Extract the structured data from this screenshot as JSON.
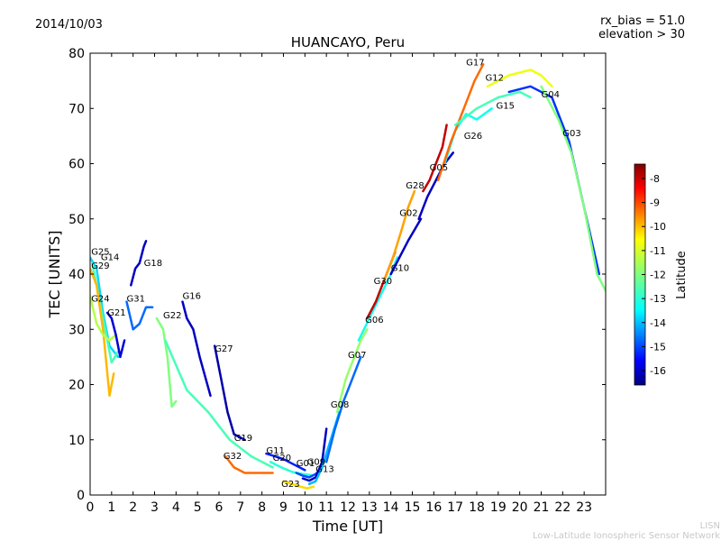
{
  "header": {
    "date": "2014/10/03",
    "rx_bias": "rx_bias = 51.0",
    "elevation": "elevation > 30"
  },
  "footer": {
    "org_short": "LISN",
    "org_long": "Low-Latitude Ionospheric Sensor Network"
  },
  "chart_data": {
    "type": "scatter",
    "title": "HUANCAYO, Peru",
    "xlabel": "Time [UT]",
    "ylabel": "TEC [UNITS]",
    "xlim": [
      0,
      24
    ],
    "ylim": [
      0,
      80
    ],
    "xticks": [
      "0",
      "1",
      "2",
      "3",
      "4",
      "5",
      "6",
      "7",
      "8",
      "9",
      "10",
      "11",
      "12",
      "13",
      "14",
      "15",
      "16",
      "17",
      "18",
      "19",
      "20",
      "21",
      "22",
      "23"
    ],
    "yticks": [
      "0",
      "10",
      "20",
      "30",
      "40",
      "50",
      "60",
      "70",
      "80"
    ],
    "colorbar": {
      "label": "Latitude",
      "range": [
        -16.6,
        -7.4
      ],
      "ticks": [
        "-8",
        "-9",
        "-10",
        "-11",
        "-12",
        "-13",
        "-14",
        "-15",
        "-16"
      ],
      "colormap": [
        "#00007f",
        "#0000ff",
        "#007fff",
        "#00ffff",
        "#7fff7f",
        "#ffff00",
        "#ff7f00",
        "#ff0000",
        "#7f0000"
      ]
    },
    "satellites": [
      {
        "label": "G25",
        "points": [
          [
            0.0,
            43
          ],
          [
            0.3,
            41
          ],
          [
            0.6,
            33
          ],
          [
            0.9,
            27
          ],
          [
            1.3,
            25
          ]
        ],
        "lat": -13.5
      },
      {
        "label": "G14",
        "points": [
          [
            0.1,
            42
          ],
          [
            0.4,
            36
          ],
          [
            0.7,
            30
          ],
          [
            1.0,
            24
          ],
          [
            1.3,
            26
          ]
        ],
        "lat": -12.5
      },
      {
        "label": "G29",
        "points": [
          [
            0.0,
            41
          ],
          [
            0.3,
            38
          ],
          [
            0.6,
            30
          ],
          [
            0.9,
            18
          ],
          [
            1.1,
            22
          ]
        ],
        "lat": -10.2
      },
      {
        "label": "G24",
        "points": [
          [
            0.0,
            36
          ],
          [
            0.3,
            31
          ],
          [
            0.6,
            29
          ],
          [
            0.9,
            28
          ],
          [
            1.2,
            29
          ]
        ],
        "lat": -11.5
      },
      {
        "label": "G21",
        "points": [
          [
            0.8,
            33
          ],
          [
            1.0,
            32
          ],
          [
            1.2,
            29
          ],
          [
            1.4,
            25
          ],
          [
            1.6,
            28
          ]
        ],
        "lat": -15.8
      },
      {
        "label": "G31",
        "points": [
          [
            1.7,
            35
          ],
          [
            2.0,
            30
          ],
          [
            2.3,
            31
          ],
          [
            2.6,
            34
          ],
          [
            2.9,
            34
          ]
        ],
        "lat": -14.5
      },
      {
        "label": "G18",
        "points": [
          [
            1.9,
            38
          ],
          [
            2.1,
            41
          ],
          [
            2.3,
            42
          ],
          [
            2.5,
            45
          ],
          [
            2.6,
            46
          ]
        ],
        "lat": -16.0
      },
      {
        "label": "G22",
        "points": [
          [
            3.1,
            32
          ],
          [
            3.4,
            30
          ],
          [
            3.6,
            25
          ],
          [
            3.8,
            16
          ],
          [
            4.0,
            17
          ]
        ],
        "lat": -12.0
      },
      {
        "label": "G16",
        "points": [
          [
            4.3,
            35
          ],
          [
            4.5,
            32
          ],
          [
            4.8,
            30
          ],
          [
            5.1,
            25
          ],
          [
            5.6,
            18
          ]
        ],
        "lat": -16.0
      },
      {
        "label": "G27",
        "points": [
          [
            5.8,
            27
          ],
          [
            6.1,
            21
          ],
          [
            6.4,
            15
          ],
          [
            6.7,
            11
          ],
          [
            7.2,
            10
          ]
        ],
        "lat": -16.2
      },
      {
        "label": "G32",
        "points": [
          [
            6.3,
            7
          ],
          [
            6.7,
            5
          ],
          [
            7.2,
            4
          ],
          [
            7.8,
            4
          ],
          [
            8.5,
            4
          ]
        ],
        "lat": -9.5
      },
      {
        "label": "G19",
        "points": [
          [
            3.5,
            28
          ],
          [
            4.5,
            19
          ],
          [
            5.5,
            15
          ],
          [
            6.5,
            10
          ],
          [
            7.5,
            7
          ],
          [
            8.5,
            5
          ]
        ],
        "lat": -12.5
      },
      {
        "label": "G11",
        "points": [
          [
            8.2,
            7.5
          ],
          [
            8.6,
            7
          ],
          [
            9.0,
            6.5
          ],
          [
            9.5,
            5.5
          ],
          [
            10.0,
            4.5
          ]
        ],
        "lat": -15.2
      },
      {
        "label": "G20",
        "points": [
          [
            8.4,
            6
          ],
          [
            8.9,
            5
          ],
          [
            9.4,
            4.2
          ],
          [
            9.9,
            3.8
          ],
          [
            10.3,
            3.6
          ]
        ],
        "lat": -12.8
      },
      {
        "label": "G01",
        "points": [
          [
            9.6,
            4
          ],
          [
            9.9,
            3.5
          ],
          [
            10.2,
            3.2
          ],
          [
            10.5,
            3.8
          ],
          [
            10.8,
            5
          ]
        ],
        "lat": -14.8
      },
      {
        "label": "G09",
        "points": [
          [
            9.9,
            3
          ],
          [
            10.2,
            2.6
          ],
          [
            10.5,
            3.2
          ],
          [
            10.8,
            6
          ],
          [
            11.0,
            12
          ]
        ],
        "lat": -16.0
      },
      {
        "label": "G13",
        "points": [
          [
            10.2,
            2
          ],
          [
            10.5,
            2.5
          ],
          [
            10.8,
            5
          ],
          [
            11.2,
            10
          ],
          [
            11.6,
            15
          ]
        ],
        "lat": -13.8
      },
      {
        "label": "G23",
        "points": [
          [
            9.0,
            2.5
          ],
          [
            9.4,
            2
          ],
          [
            9.8,
            1.5
          ],
          [
            10.1,
            1.2
          ],
          [
            10.4,
            1.5
          ]
        ],
        "lat": -10.5
      },
      {
        "label": "G08",
        "points": [
          [
            11.0,
            6
          ],
          [
            11.4,
            12
          ],
          [
            11.8,
            17
          ],
          [
            12.2,
            21
          ],
          [
            12.6,
            25
          ]
        ],
        "lat": -14.5
      },
      {
        "label": "G07",
        "points": [
          [
            11.5,
            15
          ],
          [
            11.9,
            21
          ],
          [
            12.3,
            25
          ],
          [
            12.6,
            28
          ],
          [
            12.9,
            30
          ]
        ],
        "lat": -11.8
      },
      {
        "label": "G06",
        "points": [
          [
            12.5,
            28
          ],
          [
            13.0,
            32
          ],
          [
            13.5,
            36
          ],
          [
            14.0,
            40
          ],
          [
            14.3,
            43
          ]
        ],
        "lat": -13.0
      },
      {
        "label": "G30",
        "points": [
          [
            12.9,
            32
          ],
          [
            13.3,
            35
          ],
          [
            13.7,
            39
          ],
          [
            14.0,
            42
          ],
          [
            14.2,
            44
          ]
        ],
        "lat": -8.0
      },
      {
        "label": "G10",
        "points": [
          [
            13.7,
            39
          ],
          [
            14.1,
            43
          ],
          [
            14.5,
            48
          ],
          [
            14.8,
            52
          ],
          [
            15.1,
            55
          ]
        ],
        "lat": -10.0
      },
      {
        "label": "G02",
        "points": [
          [
            14.0,
            40
          ],
          [
            14.4,
            43
          ],
          [
            14.8,
            46
          ],
          [
            15.1,
            48
          ],
          [
            15.4,
            50
          ]
        ],
        "lat": -16.0
      },
      {
        "label": "G28",
        "points": [
          [
            15.5,
            55
          ],
          [
            15.8,
            57
          ],
          [
            16.1,
            60
          ],
          [
            16.4,
            63
          ],
          [
            16.6,
            67
          ]
        ],
        "lat": -8.0
      },
      {
        "label": "G05",
        "points": [
          [
            15.3,
            50
          ],
          [
            15.7,
            54
          ],
          [
            16.1,
            57
          ],
          [
            16.5,
            60
          ],
          [
            16.9,
            62
          ]
        ],
        "lat": -16.0
      },
      {
        "label": "G26",
        "points": [
          [
            16.5,
            60
          ],
          [
            17.0,
            66
          ],
          [
            17.5,
            69
          ],
          [
            18.0,
            68
          ],
          [
            18.7,
            70
          ]
        ],
        "lat": -13.0
      },
      {
        "label": "G17",
        "points": [
          [
            16.2,
            57
          ],
          [
            16.8,
            64
          ],
          [
            17.4,
            70
          ],
          [
            17.9,
            75
          ],
          [
            18.3,
            78
          ]
        ],
        "lat": -9.5
      },
      {
        "label": "G15",
        "points": [
          [
            17.0,
            67
          ],
          [
            18.0,
            70
          ],
          [
            19.0,
            72
          ],
          [
            20.0,
            73
          ],
          [
            20.5,
            72
          ]
        ],
        "lat": -12.5
      },
      {
        "label": "G12",
        "points": [
          [
            18.5,
            74
          ],
          [
            19.5,
            76
          ],
          [
            20.5,
            77
          ],
          [
            21.0,
            76
          ],
          [
            21.5,
            74
          ]
        ],
        "lat": -11.0
      },
      {
        "label": "G04",
        "points": [
          [
            19.5,
            73
          ],
          [
            20.5,
            74
          ],
          [
            21.5,
            72
          ],
          [
            22.3,
            64
          ],
          [
            23.0,
            52
          ],
          [
            23.7,
            40
          ]
        ],
        "lat": -15.0
      },
      {
        "label": "G03",
        "points": [
          [
            21.0,
            74
          ],
          [
            21.8,
            68
          ],
          [
            22.4,
            62
          ],
          [
            23.0,
            52
          ],
          [
            23.6,
            40
          ],
          [
            24.0,
            37
          ]
        ],
        "lat": -12.0
      }
    ],
    "point_labels": [
      {
        "text": "G25",
        "x": 0.05,
        "y": 43.5
      },
      {
        "text": "G14",
        "x": 0.5,
        "y": 42.5
      },
      {
        "text": "G29",
        "x": 0.05,
        "y": 41.0
      },
      {
        "text": "G24",
        "x": 0.05,
        "y": 35.0
      },
      {
        "text": "G21",
        "x": 0.8,
        "y": 32.5
      },
      {
        "text": "G31",
        "x": 1.7,
        "y": 35.0
      },
      {
        "text": "G18",
        "x": 2.5,
        "y": 41.5
      },
      {
        "text": "G22",
        "x": 3.4,
        "y": 32.0
      },
      {
        "text": "G16",
        "x": 4.3,
        "y": 35.5
      },
      {
        "text": "G27",
        "x": 5.8,
        "y": 26.0
      },
      {
        "text": "G19",
        "x": 6.7,
        "y": 9.8
      },
      {
        "text": "G32",
        "x": 6.2,
        "y": 6.5
      },
      {
        "text": "G11",
        "x": 8.2,
        "y": 7.5
      },
      {
        "text": "G20",
        "x": 8.5,
        "y": 6.2
      },
      {
        "text": "G01",
        "x": 9.6,
        "y": 5.2
      },
      {
        "text": "G09",
        "x": 10.1,
        "y": 5.5
      },
      {
        "text": "G13",
        "x": 10.5,
        "y": 4.2
      },
      {
        "text": "G23",
        "x": 8.9,
        "y": 1.5
      },
      {
        "text": "G08",
        "x": 11.2,
        "y": 15.8
      },
      {
        "text": "G07",
        "x": 12.0,
        "y": 24.8
      },
      {
        "text": "G06",
        "x": 12.8,
        "y": 31.2
      },
      {
        "text": "G30",
        "x": 13.2,
        "y": 38.2
      },
      {
        "text": "G10",
        "x": 14.0,
        "y": 40.6
      },
      {
        "text": "G02",
        "x": 14.4,
        "y": 50.5
      },
      {
        "text": "G28",
        "x": 14.7,
        "y": 55.5
      },
      {
        "text": "G05",
        "x": 15.8,
        "y": 58.8
      },
      {
        "text": "G26",
        "x": 17.4,
        "y": 64.5
      },
      {
        "text": "G17",
        "x": 17.5,
        "y": 77.8
      },
      {
        "text": "G15",
        "x": 18.9,
        "y": 70.0
      },
      {
        "text": "G12",
        "x": 18.4,
        "y": 75.0
      },
      {
        "text": "G04",
        "x": 21.0,
        "y": 72.0
      },
      {
        "text": "G03",
        "x": 22.0,
        "y": 65.0
      }
    ]
  }
}
